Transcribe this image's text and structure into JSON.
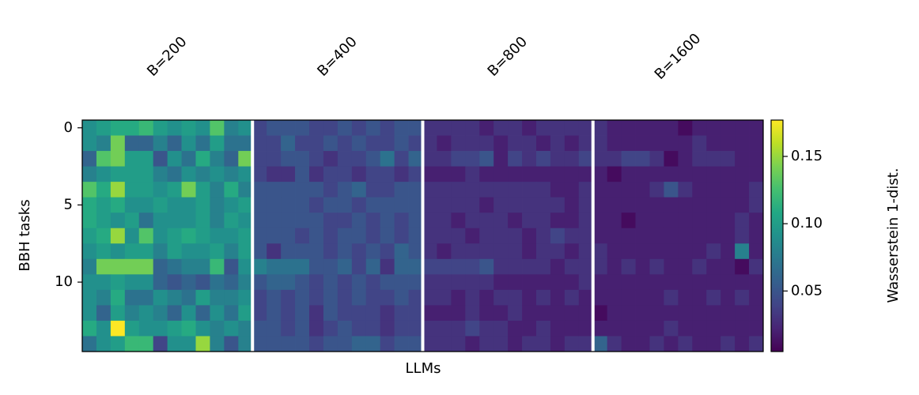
{
  "chart_data": {
    "type": "heatmap",
    "column_groups": [
      "B=200",
      "B=400",
      "B=800",
      "B=1600"
    ],
    "xlabel": "LLMs",
    "ylabel": "BBH tasks",
    "colorbar_label": "Wasserstein 1-dist.",
    "colormap": "viridis",
    "ylim": [
      -0.5,
      14.5
    ],
    "yticks": [
      0,
      5,
      10
    ],
    "clim": [
      0.005,
      0.177
    ],
    "cticks": [
      0.05,
      {
        "value": 0.1,
        "label": "0.10"
      },
      0.15
    ],
    "values": [
      [
        0.09,
        0.1,
        0.11,
        0.11,
        0.12,
        0.1,
        0.09,
        0.1,
        0.09,
        0.13,
        0.08,
        0.09,
        0.04,
        0.05,
        0.05,
        0.05,
        0.04,
        0.04,
        0.05,
        0.04,
        0.05,
        0.04,
        0.05,
        0.05,
        0.03,
        0.03,
        0.03,
        0.03,
        0.02,
        0.03,
        0.03,
        0.02,
        0.03,
        0.03,
        0.03,
        0.03,
        0.03,
        0.02,
        0.02,
        0.02,
        0.02,
        0.02,
        0.01,
        0.02,
        0.02,
        0.02,
        0.02,
        0.02
      ],
      [
        0.09,
        0.08,
        0.14,
        0.06,
        0.06,
        0.08,
        0.06,
        0.09,
        0.07,
        0.1,
        0.07,
        0.07,
        0.04,
        0.04,
        0.06,
        0.04,
        0.04,
        0.05,
        0.04,
        0.05,
        0.04,
        0.04,
        0.05,
        0.04,
        0.03,
        0.02,
        0.03,
        0.03,
        0.03,
        0.02,
        0.03,
        0.03,
        0.02,
        0.03,
        0.02,
        0.03,
        0.03,
        0.02,
        0.02,
        0.02,
        0.02,
        0.02,
        0.02,
        0.03,
        0.02,
        0.02,
        0.02,
        0.02
      ],
      [
        0.06,
        0.13,
        0.14,
        0.1,
        0.1,
        0.05,
        0.09,
        0.07,
        0.11,
        0.08,
        0.06,
        0.14,
        0.04,
        0.04,
        0.05,
        0.05,
        0.04,
        0.03,
        0.04,
        0.04,
        0.05,
        0.07,
        0.04,
        0.06,
        0.03,
        0.03,
        0.04,
        0.04,
        0.05,
        0.02,
        0.04,
        0.03,
        0.04,
        0.03,
        0.03,
        0.04,
        0.03,
        0.03,
        0.04,
        0.04,
        0.03,
        0.01,
        0.02,
        0.03,
        0.03,
        0.03,
        0.02,
        0.02
      ],
      [
        0.08,
        0.09,
        0.1,
        0.1,
        0.1,
        0.08,
        0.07,
        0.09,
        0.08,
        0.09,
        0.08,
        0.09,
        0.04,
        0.03,
        0.03,
        0.05,
        0.03,
        0.04,
        0.04,
        0.03,
        0.04,
        0.04,
        0.03,
        0.04,
        0.02,
        0.02,
        0.02,
        0.03,
        0.02,
        0.02,
        0.02,
        0.02,
        0.02,
        0.02,
        0.02,
        0.02,
        0.02,
        0.01,
        0.02,
        0.02,
        0.02,
        0.02,
        0.02,
        0.02,
        0.02,
        0.02,
        0.02,
        0.02
      ],
      [
        0.13,
        0.11,
        0.15,
        0.1,
        0.1,
        0.09,
        0.1,
        0.14,
        0.1,
        0.08,
        0.11,
        0.08,
        0.05,
        0.05,
        0.05,
        0.05,
        0.05,
        0.04,
        0.05,
        0.06,
        0.04,
        0.04,
        0.05,
        0.05,
        0.03,
        0.03,
        0.03,
        0.03,
        0.03,
        0.03,
        0.03,
        0.03,
        0.03,
        0.02,
        0.02,
        0.03,
        0.02,
        0.02,
        0.02,
        0.02,
        0.03,
        0.05,
        0.03,
        0.02,
        0.02,
        0.02,
        0.02,
        0.03
      ],
      [
        0.11,
        0.1,
        0.11,
        0.09,
        0.09,
        0.1,
        0.09,
        0.09,
        0.1,
        0.08,
        0.09,
        0.1,
        0.05,
        0.05,
        0.05,
        0.05,
        0.04,
        0.05,
        0.05,
        0.04,
        0.05,
        0.05,
        0.05,
        0.05,
        0.03,
        0.03,
        0.03,
        0.03,
        0.02,
        0.03,
        0.03,
        0.03,
        0.03,
        0.03,
        0.02,
        0.03,
        0.02,
        0.02,
        0.02,
        0.02,
        0.02,
        0.02,
        0.02,
        0.02,
        0.02,
        0.02,
        0.02,
        0.03
      ],
      [
        0.11,
        0.1,
        0.09,
        0.1,
        0.07,
        0.09,
        0.09,
        0.09,
        0.1,
        0.08,
        0.1,
        0.09,
        0.05,
        0.05,
        0.05,
        0.05,
        0.05,
        0.04,
        0.04,
        0.05,
        0.04,
        0.05,
        0.04,
        0.05,
        0.03,
        0.03,
        0.02,
        0.03,
        0.03,
        0.03,
        0.02,
        0.03,
        0.03,
        0.02,
        0.02,
        0.03,
        0.02,
        0.02,
        0.01,
        0.02,
        0.02,
        0.02,
        0.02,
        0.02,
        0.02,
        0.02,
        0.03,
        0.02
      ],
      [
        0.1,
        0.11,
        0.15,
        0.09,
        0.13,
        0.09,
        0.1,
        0.11,
        0.1,
        0.09,
        0.09,
        0.1,
        0.05,
        0.05,
        0.05,
        0.04,
        0.05,
        0.04,
        0.05,
        0.05,
        0.04,
        0.05,
        0.04,
        0.05,
        0.03,
        0.03,
        0.03,
        0.02,
        0.03,
        0.03,
        0.03,
        0.02,
        0.03,
        0.04,
        0.03,
        0.03,
        0.02,
        0.02,
        0.02,
        0.02,
        0.02,
        0.02,
        0.02,
        0.02,
        0.02,
        0.02,
        0.03,
        0.02
      ],
      [
        0.09,
        0.1,
        0.09,
        0.1,
        0.1,
        0.08,
        0.1,
        0.09,
        0.09,
        0.1,
        0.08,
        0.1,
        0.05,
        0.03,
        0.05,
        0.05,
        0.05,
        0.04,
        0.05,
        0.04,
        0.05,
        0.04,
        0.06,
        0.05,
        0.03,
        0.02,
        0.03,
        0.03,
        0.03,
        0.03,
        0.03,
        0.02,
        0.03,
        0.03,
        0.02,
        0.03,
        0.03,
        0.02,
        0.02,
        0.02,
        0.02,
        0.02,
        0.02,
        0.02,
        0.03,
        0.02,
        0.08,
        0.02
      ],
      [
        0.08,
        0.14,
        0.14,
        0.14,
        0.14,
        0.06,
        0.07,
        0.08,
        0.08,
        0.12,
        0.05,
        0.09,
        0.08,
        0.07,
        0.07,
        0.07,
        0.05,
        0.05,
        0.06,
        0.04,
        0.06,
        0.03,
        0.06,
        0.06,
        0.04,
        0.04,
        0.04,
        0.04,
        0.05,
        0.03,
        0.03,
        0.03,
        0.03,
        0.02,
        0.03,
        0.03,
        0.03,
        0.02,
        0.03,
        0.02,
        0.03,
        0.02,
        0.02,
        0.03,
        0.02,
        0.02,
        0.01,
        0.03
      ],
      [
        0.09,
        0.09,
        0.1,
        0.09,
        0.09,
        0.06,
        0.05,
        0.06,
        0.05,
        0.07,
        0.06,
        0.08,
        0.05,
        0.06,
        0.06,
        0.05,
        0.04,
        0.05,
        0.04,
        0.05,
        0.04,
        0.05,
        0.05,
        0.05,
        0.03,
        0.03,
        0.03,
        0.03,
        0.03,
        0.02,
        0.02,
        0.02,
        0.02,
        0.02,
        0.02,
        0.03,
        0.02,
        0.02,
        0.02,
        0.02,
        0.02,
        0.02,
        0.02,
        0.02,
        0.02,
        0.02,
        0.02,
        0.02
      ],
      [
        0.09,
        0.08,
        0.11,
        0.07,
        0.07,
        0.09,
        0.08,
        0.07,
        0.1,
        0.08,
        0.08,
        0.09,
        0.04,
        0.05,
        0.04,
        0.05,
        0.04,
        0.05,
        0.04,
        0.05,
        0.04,
        0.04,
        0.05,
        0.04,
        0.03,
        0.03,
        0.02,
        0.03,
        0.02,
        0.03,
        0.03,
        0.02,
        0.03,
        0.02,
        0.03,
        0.02,
        0.02,
        0.02,
        0.02,
        0.02,
        0.02,
        0.03,
        0.02,
        0.02,
        0.03,
        0.02,
        0.03,
        0.02
      ],
      [
        0.09,
        0.06,
        0.1,
        0.08,
        0.09,
        0.08,
        0.06,
        0.09,
        0.06,
        0.09,
        0.07,
        0.1,
        0.04,
        0.05,
        0.04,
        0.05,
        0.03,
        0.05,
        0.04,
        0.04,
        0.04,
        0.03,
        0.04,
        0.04,
        0.02,
        0.02,
        0.02,
        0.03,
        0.02,
        0.02,
        0.03,
        0.02,
        0.02,
        0.02,
        0.02,
        0.02,
        0.01,
        0.02,
        0.02,
        0.02,
        0.02,
        0.02,
        0.02,
        0.02,
        0.02,
        0.02,
        0.02,
        0.02
      ],
      [
        0.11,
        0.09,
        0.177,
        0.1,
        0.09,
        0.09,
        0.1,
        0.11,
        0.09,
        0.08,
        0.09,
        0.08,
        0.05,
        0.05,
        0.04,
        0.05,
        0.03,
        0.04,
        0.05,
        0.04,
        0.04,
        0.03,
        0.04,
        0.04,
        0.03,
        0.03,
        0.03,
        0.04,
        0.03,
        0.03,
        0.02,
        0.02,
        0.03,
        0.02,
        0.02,
        0.02,
        0.02,
        0.02,
        0.02,
        0.02,
        0.02,
        0.03,
        0.02,
        0.02,
        0.02,
        0.02,
        0.02,
        0.02
      ],
      [
        0.07,
        0.09,
        0.1,
        0.12,
        0.12,
        0.04,
        0.09,
        0.09,
        0.15,
        0.08,
        0.05,
        0.08,
        0.05,
        0.05,
        0.05,
        0.05,
        0.04,
        0.05,
        0.05,
        0.06,
        0.06,
        0.04,
        0.05,
        0.05,
        0.03,
        0.03,
        0.03,
        0.02,
        0.03,
        0.03,
        0.02,
        0.03,
        0.03,
        0.02,
        0.03,
        0.03,
        0.06,
        0.03,
        0.02,
        0.02,
        0.03,
        0.02,
        0.03,
        0.02,
        0.02,
        0.03,
        0.02,
        0.03
      ]
    ]
  }
}
